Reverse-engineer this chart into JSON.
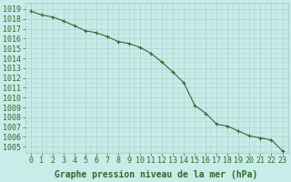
{
  "x": [
    0,
    1,
    2,
    3,
    4,
    5,
    6,
    7,
    8,
    9,
    10,
    11,
    12,
    13,
    14,
    15,
    16,
    17,
    18,
    19,
    20,
    21,
    22,
    23
  ],
  "y": [
    1018.8,
    1018.4,
    1018.2,
    1017.8,
    1017.3,
    1016.8,
    1016.6,
    1016.2,
    1015.7,
    1015.5,
    1015.1,
    1014.5,
    1013.6,
    1012.6,
    1011.5,
    1009.2,
    1008.4,
    1007.3,
    1007.1,
    1006.6,
    1006.1,
    1005.9,
    1005.7,
    1004.6
  ],
  "line_color": "#2d6a2d",
  "marker_color": "#2d6a2d",
  "bg_color": "#c8ece8",
  "grid_color": "#a0ccc8",
  "ylabel_values": [
    1005,
    1006,
    1007,
    1008,
    1009,
    1010,
    1011,
    1012,
    1013,
    1014,
    1015,
    1016,
    1017,
    1018,
    1019
  ],
  "xlabel": "Graphe pression niveau de la mer (hPa)",
  "xlim": [
    -0.5,
    23.5
  ],
  "ylim": [
    1004.4,
    1019.6
  ],
  "tick_color": "#2d6a2d",
  "xlabel_color": "#2d6a2d",
  "xlabel_fontsize": 7.0,
  "tick_fontsize": 6.0,
  "linewidth": 0.8,
  "markersize": 2.2
}
